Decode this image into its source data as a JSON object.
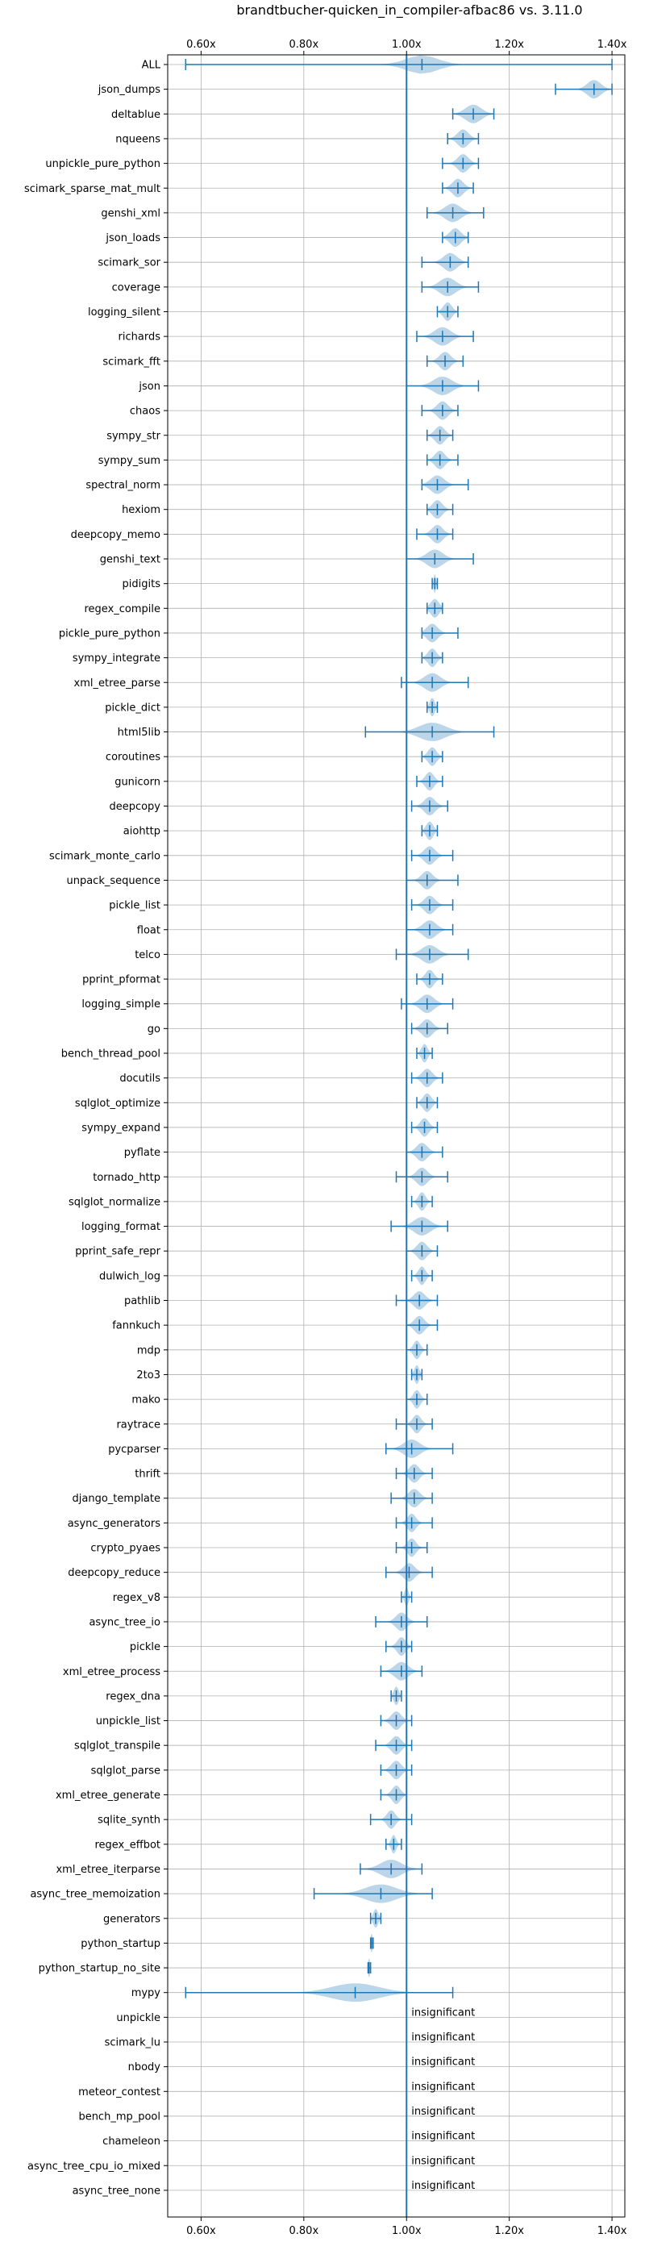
{
  "chart_data": {
    "type": "violin",
    "title": "brandtbucher-quicken_in_compiler-afbac86 vs. 3.11.0",
    "xlim": [
      0.535,
      1.425
    ],
    "x_ticks": [
      0.6,
      0.8,
      1.0,
      1.2,
      1.4
    ],
    "x_tick_labels": [
      "0.60x",
      "0.80x",
      "1.00x",
      "1.20x",
      "1.40x"
    ],
    "x_ticks_top": true,
    "x_ticks_bottom": true,
    "reference_line": 1.0,
    "grid": true,
    "colors": {
      "violin": "#1f77b4",
      "reference": "#1f77b4"
    },
    "benchmarks": [
      {
        "name": "ALL",
        "min": 0.57,
        "max": 1.4,
        "median": 1.03,
        "wide": 0.06
      },
      {
        "name": "json_dumps",
        "min": 1.29,
        "max": 1.4,
        "median": 1.365,
        "wide": 0.025
      },
      {
        "name": "deltablue",
        "min": 1.09,
        "max": 1.17,
        "median": 1.13,
        "wide": 0.03
      },
      {
        "name": "nqueens",
        "min": 1.08,
        "max": 1.14,
        "median": 1.11,
        "wide": 0.02
      },
      {
        "name": "unpickle_pure_python",
        "min": 1.07,
        "max": 1.14,
        "median": 1.11,
        "wide": 0.02
      },
      {
        "name": "scimark_sparse_mat_mult",
        "min": 1.07,
        "max": 1.13,
        "median": 1.1,
        "wide": 0.02
      },
      {
        "name": "genshi_xml",
        "min": 1.04,
        "max": 1.15,
        "median": 1.09,
        "wide": 0.03
      },
      {
        "name": "json_loads",
        "min": 1.07,
        "max": 1.12,
        "median": 1.095,
        "wide": 0.02
      },
      {
        "name": "scimark_sor",
        "min": 1.03,
        "max": 1.12,
        "median": 1.085,
        "wide": 0.025
      },
      {
        "name": "coverage",
        "min": 1.03,
        "max": 1.14,
        "median": 1.08,
        "wide": 0.03
      },
      {
        "name": "logging_silent",
        "min": 1.06,
        "max": 1.1,
        "median": 1.08,
        "wide": 0.015
      },
      {
        "name": "richards",
        "min": 1.02,
        "max": 1.13,
        "median": 1.07,
        "wide": 0.03
      },
      {
        "name": "scimark_fft",
        "min": 1.04,
        "max": 1.11,
        "median": 1.075,
        "wide": 0.02
      },
      {
        "name": "json",
        "min": 1.0,
        "max": 1.14,
        "median": 1.07,
        "wide": 0.035
      },
      {
        "name": "chaos",
        "min": 1.03,
        "max": 1.1,
        "median": 1.07,
        "wide": 0.02
      },
      {
        "name": "sympy_str",
        "min": 1.04,
        "max": 1.09,
        "median": 1.065,
        "wide": 0.018
      },
      {
        "name": "sympy_sum",
        "min": 1.04,
        "max": 1.1,
        "median": 1.065,
        "wide": 0.018
      },
      {
        "name": "spectral_norm",
        "min": 1.03,
        "max": 1.12,
        "median": 1.06,
        "wide": 0.025
      },
      {
        "name": "hexiom",
        "min": 1.04,
        "max": 1.09,
        "median": 1.06,
        "wide": 0.018
      },
      {
        "name": "deepcopy_memo",
        "min": 1.02,
        "max": 1.09,
        "median": 1.06,
        "wide": 0.02
      },
      {
        "name": "genshi_text",
        "min": 1.0,
        "max": 1.13,
        "median": 1.055,
        "wide": 0.03
      },
      {
        "name": "pidigits",
        "min": 1.05,
        "max": 1.06,
        "median": 1.055,
        "wide": 0.003
      },
      {
        "name": "regex_compile",
        "min": 1.04,
        "max": 1.07,
        "median": 1.055,
        "wide": 0.015
      },
      {
        "name": "pickle_pure_python",
        "min": 1.03,
        "max": 1.1,
        "median": 1.05,
        "wide": 0.02
      },
      {
        "name": "sympy_integrate",
        "min": 1.03,
        "max": 1.07,
        "median": 1.05,
        "wide": 0.015
      },
      {
        "name": "xml_etree_parse",
        "min": 0.99,
        "max": 1.12,
        "median": 1.05,
        "wide": 0.03
      },
      {
        "name": "pickle_dict",
        "min": 1.04,
        "max": 1.06,
        "median": 1.05,
        "wide": 0.008
      },
      {
        "name": "html5lib",
        "min": 0.92,
        "max": 1.17,
        "median": 1.05,
        "wide": 0.05
      },
      {
        "name": "coroutines",
        "min": 1.03,
        "max": 1.07,
        "median": 1.05,
        "wide": 0.015
      },
      {
        "name": "gunicorn",
        "min": 1.02,
        "max": 1.07,
        "median": 1.045,
        "wide": 0.015
      },
      {
        "name": "deepcopy",
        "min": 1.01,
        "max": 1.08,
        "median": 1.045,
        "wide": 0.02
      },
      {
        "name": "aiohttp",
        "min": 1.03,
        "max": 1.06,
        "median": 1.045,
        "wide": 0.012
      },
      {
        "name": "scimark_monte_carlo",
        "min": 1.01,
        "max": 1.09,
        "median": 1.045,
        "wide": 0.02
      },
      {
        "name": "unpack_sequence",
        "min": 1.0,
        "max": 1.1,
        "median": 1.04,
        "wide": 0.02
      },
      {
        "name": "pickle_list",
        "min": 1.01,
        "max": 1.09,
        "median": 1.045,
        "wide": 0.02
      },
      {
        "name": "float",
        "min": 1.0,
        "max": 1.09,
        "median": 1.045,
        "wide": 0.025
      },
      {
        "name": "telco",
        "min": 0.98,
        "max": 1.12,
        "median": 1.045,
        "wide": 0.03
      },
      {
        "name": "pprint_pformat",
        "min": 1.02,
        "max": 1.07,
        "median": 1.045,
        "wide": 0.015
      },
      {
        "name": "logging_simple",
        "min": 0.99,
        "max": 1.09,
        "median": 1.04,
        "wide": 0.025
      },
      {
        "name": "go",
        "min": 1.01,
        "max": 1.08,
        "median": 1.04,
        "wide": 0.02
      },
      {
        "name": "bench_thread_pool",
        "min": 1.02,
        "max": 1.05,
        "median": 1.035,
        "wide": 0.01
      },
      {
        "name": "docutils",
        "min": 1.01,
        "max": 1.07,
        "median": 1.04,
        "wide": 0.018
      },
      {
        "name": "sqlglot_optimize",
        "min": 1.02,
        "max": 1.06,
        "median": 1.04,
        "wide": 0.015
      },
      {
        "name": "sympy_expand",
        "min": 1.01,
        "max": 1.06,
        "median": 1.035,
        "wide": 0.015
      },
      {
        "name": "pyflate",
        "min": 1.0,
        "max": 1.07,
        "median": 1.03,
        "wide": 0.02
      },
      {
        "name": "tornado_http",
        "min": 0.98,
        "max": 1.08,
        "median": 1.03,
        "wide": 0.02
      },
      {
        "name": "sqlglot_normalize",
        "min": 1.01,
        "max": 1.05,
        "median": 1.03,
        "wide": 0.012
      },
      {
        "name": "logging_format",
        "min": 0.97,
        "max": 1.08,
        "median": 1.03,
        "wide": 0.03
      },
      {
        "name": "pprint_safe_repr",
        "min": 1.0,
        "max": 1.06,
        "median": 1.03,
        "wide": 0.018
      },
      {
        "name": "dulwich_log",
        "min": 1.01,
        "max": 1.05,
        "median": 1.03,
        "wide": 0.012
      },
      {
        "name": "pathlib",
        "min": 0.98,
        "max": 1.06,
        "median": 1.025,
        "wide": 0.02
      },
      {
        "name": "fannkuch",
        "min": 1.0,
        "max": 1.06,
        "median": 1.025,
        "wide": 0.018
      },
      {
        "name": "mdp",
        "min": 1.0,
        "max": 1.04,
        "median": 1.02,
        "wide": 0.012
      },
      {
        "name": "2to3",
        "min": 1.01,
        "max": 1.03,
        "median": 1.02,
        "wide": 0.008
      },
      {
        "name": "mako",
        "min": 1.0,
        "max": 1.04,
        "median": 1.02,
        "wide": 0.012
      },
      {
        "name": "raytrace",
        "min": 0.98,
        "max": 1.05,
        "median": 1.02,
        "wide": 0.015
      },
      {
        "name": "pycparser",
        "min": 0.96,
        "max": 1.09,
        "median": 1.01,
        "wide": 0.03
      },
      {
        "name": "thrift",
        "min": 0.98,
        "max": 1.05,
        "median": 1.015,
        "wide": 0.018
      },
      {
        "name": "django_template",
        "min": 0.97,
        "max": 1.05,
        "median": 1.015,
        "wide": 0.02
      },
      {
        "name": "async_generators",
        "min": 0.98,
        "max": 1.05,
        "median": 1.01,
        "wide": 0.015
      },
      {
        "name": "crypto_pyaes",
        "min": 0.98,
        "max": 1.04,
        "median": 1.01,
        "wide": 0.015
      },
      {
        "name": "deepcopy_reduce",
        "min": 0.96,
        "max": 1.05,
        "median": 1.005,
        "wide": 0.02
      },
      {
        "name": "regex_v8",
        "min": 0.99,
        "max": 1.01,
        "median": 1.0,
        "wide": 0.006
      },
      {
        "name": "async_tree_io",
        "min": 0.94,
        "max": 1.04,
        "median": 0.99,
        "wide": 0.02
      },
      {
        "name": "pickle",
        "min": 0.96,
        "max": 1.01,
        "median": 0.99,
        "wide": 0.015
      },
      {
        "name": "xml_etree_process",
        "min": 0.95,
        "max": 1.03,
        "median": 0.99,
        "wide": 0.025
      },
      {
        "name": "regex_dna",
        "min": 0.97,
        "max": 0.99,
        "median": 0.98,
        "wide": 0.008
      },
      {
        "name": "unpickle_list",
        "min": 0.95,
        "max": 1.01,
        "median": 0.98,
        "wide": 0.018
      },
      {
        "name": "sqlglot_transpile",
        "min": 0.94,
        "max": 1.01,
        "median": 0.98,
        "wide": 0.018
      },
      {
        "name": "sqlglot_parse",
        "min": 0.95,
        "max": 1.01,
        "median": 0.98,
        "wide": 0.018
      },
      {
        "name": "xml_etree_generate",
        "min": 0.95,
        "max": 1.0,
        "median": 0.98,
        "wide": 0.015
      },
      {
        "name": "sqlite_synth",
        "min": 0.93,
        "max": 1.01,
        "median": 0.97,
        "wide": 0.015
      },
      {
        "name": "regex_effbot",
        "min": 0.96,
        "max": 0.99,
        "median": 0.975,
        "wide": 0.008
      },
      {
        "name": "xml_etree_iterparse",
        "min": 0.91,
        "max": 1.03,
        "median": 0.97,
        "wide": 0.04
      },
      {
        "name": "async_tree_memoization",
        "min": 0.82,
        "max": 1.05,
        "median": 0.95,
        "wide": 0.06
      },
      {
        "name": "generators",
        "min": 0.93,
        "max": 0.95,
        "median": 0.94,
        "wide": 0.008
      },
      {
        "name": "python_startup",
        "min": 0.93,
        "max": 0.935,
        "median": 0.932,
        "wide": 0.003
      },
      {
        "name": "python_startup_no_site",
        "min": 0.925,
        "max": 0.93,
        "median": 0.927,
        "wide": 0.003
      },
      {
        "name": "mypy",
        "min": 0.57,
        "max": 1.09,
        "median": 0.9,
        "wide": 0.09
      }
    ],
    "insignificant": [
      "unpickle",
      "scimark_lu",
      "nbody",
      "meteor_contest",
      "bench_mp_pool",
      "chameleon",
      "async_tree_cpu_io_mixed",
      "async_tree_none"
    ],
    "insignificant_label": "insignificant"
  }
}
